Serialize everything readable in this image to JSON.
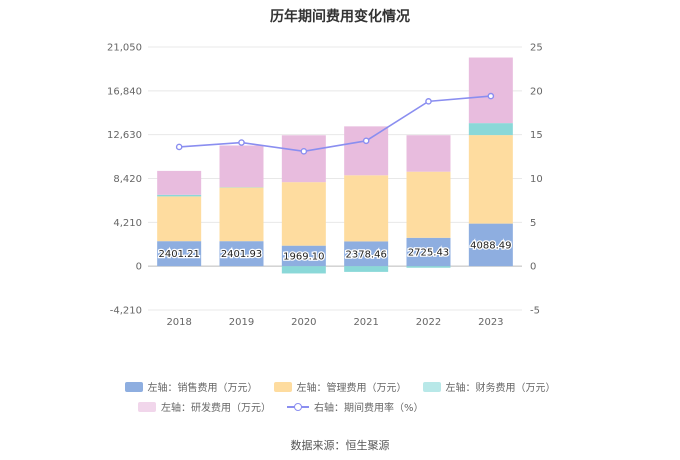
{
  "title": "历年期间费用变化情况",
  "source": "数据来源：恒生聚源",
  "legend": {
    "sales": "左轴：销售费用（万元）",
    "admin": "左轴：管理费用（万元）",
    "finance": "左轴：财务费用（万元）",
    "rd": "左轴：研发费用（万元）",
    "rate": "右轴：期间费用率（%）"
  },
  "colors": {
    "sales": "#8eaee0",
    "admin": "#fedc9f",
    "finance": "#8ad8d8",
    "rd": "#e8bcde",
    "rate": "#8a8ef0"
  },
  "chart_data": {
    "type": "bar",
    "title": "历年期间费用变化情况",
    "categories": [
      "2018",
      "2019",
      "2020",
      "2021",
      "2022",
      "2023"
    ],
    "left_axis": {
      "ticks": [
        "21,050",
        "16,840",
        "12,630",
        "8,420",
        "4,210",
        "0",
        "-4,210"
      ],
      "ylim": [
        -4210,
        21050
      ]
    },
    "right_axis": {
      "ticks": [
        "25",
        "20",
        "15",
        "10",
        "5",
        "0",
        "-5"
      ],
      "ylim": [
        -5,
        25
      ]
    },
    "series": [
      {
        "key": "sales",
        "name": "左轴：销售费用（万元）",
        "values": [
          2401.21,
          2401.93,
          1969.1,
          2378.46,
          2725.43,
          4088.49
        ],
        "labels": [
          "2401.21",
          "2401.93",
          "1969.10",
          "2378.46",
          "2725.43",
          "4088.49"
        ]
      },
      {
        "key": "admin",
        "name": "左轴：管理费用（万元）",
        "values": [
          4300,
          5150,
          6100,
          6350,
          6350,
          8500
        ]
      },
      {
        "key": "finance",
        "name": "左轴：财务费用（万元）",
        "values": [
          150,
          40,
          -700,
          -550,
          -150,
          1150
        ]
      },
      {
        "key": "rd",
        "name": "左轴：研发费用（万元）",
        "values": [
          2300,
          4000,
          4500,
          4700,
          3500,
          6300
        ]
      },
      {
        "key": "rate",
        "name": "右轴：期间费用率（%）",
        "type": "line",
        "axis": "right",
        "values": [
          13.6,
          14.1,
          13.1,
          14.3,
          18.8,
          19.4
        ]
      }
    ],
    "grid": true
  }
}
